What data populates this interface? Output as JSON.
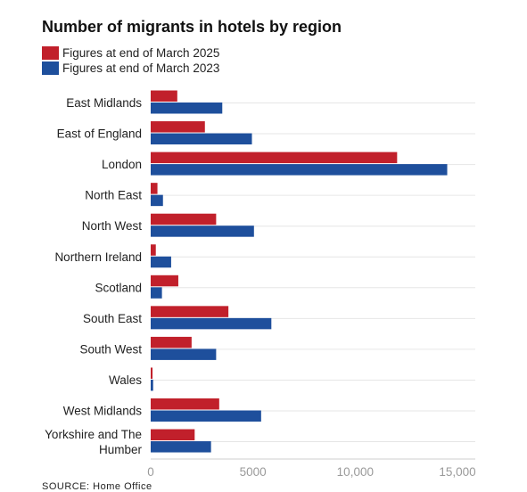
{
  "chart_data": {
    "type": "bar",
    "orientation": "horizontal",
    "title": "Number of migrants in hotels by region",
    "categories": [
      "East Midlands",
      "East of England",
      "London",
      "North East",
      "North West",
      "Northern Ireland",
      "Scotland",
      "South East",
      "South West",
      "Wales",
      "West Midlands",
      "Yorkshire and The Humber"
    ],
    "series": [
      {
        "name": "Figures at end of March 2025",
        "color": "#c1202b",
        "values": [
          1300,
          2650,
          12050,
          330,
          3200,
          250,
          1350,
          3800,
          2000,
          90,
          3350,
          2150
        ]
      },
      {
        "name": "Figures at end of March 2023",
        "color": "#1e4f9c",
        "values": [
          3500,
          4950,
          14500,
          600,
          5050,
          1000,
          550,
          5900,
          3200,
          120,
          5400,
          2950
        ]
      }
    ],
    "xticks": [
      0,
      5000,
      10000,
      15000
    ],
    "xtick_labels": [
      "0",
      "5000",
      "10,000",
      "15,000"
    ],
    "xlim": [
      0,
      16000
    ],
    "grid": "horizontal",
    "legend_position": "top-left"
  },
  "source": "SOURCE: Home Office"
}
